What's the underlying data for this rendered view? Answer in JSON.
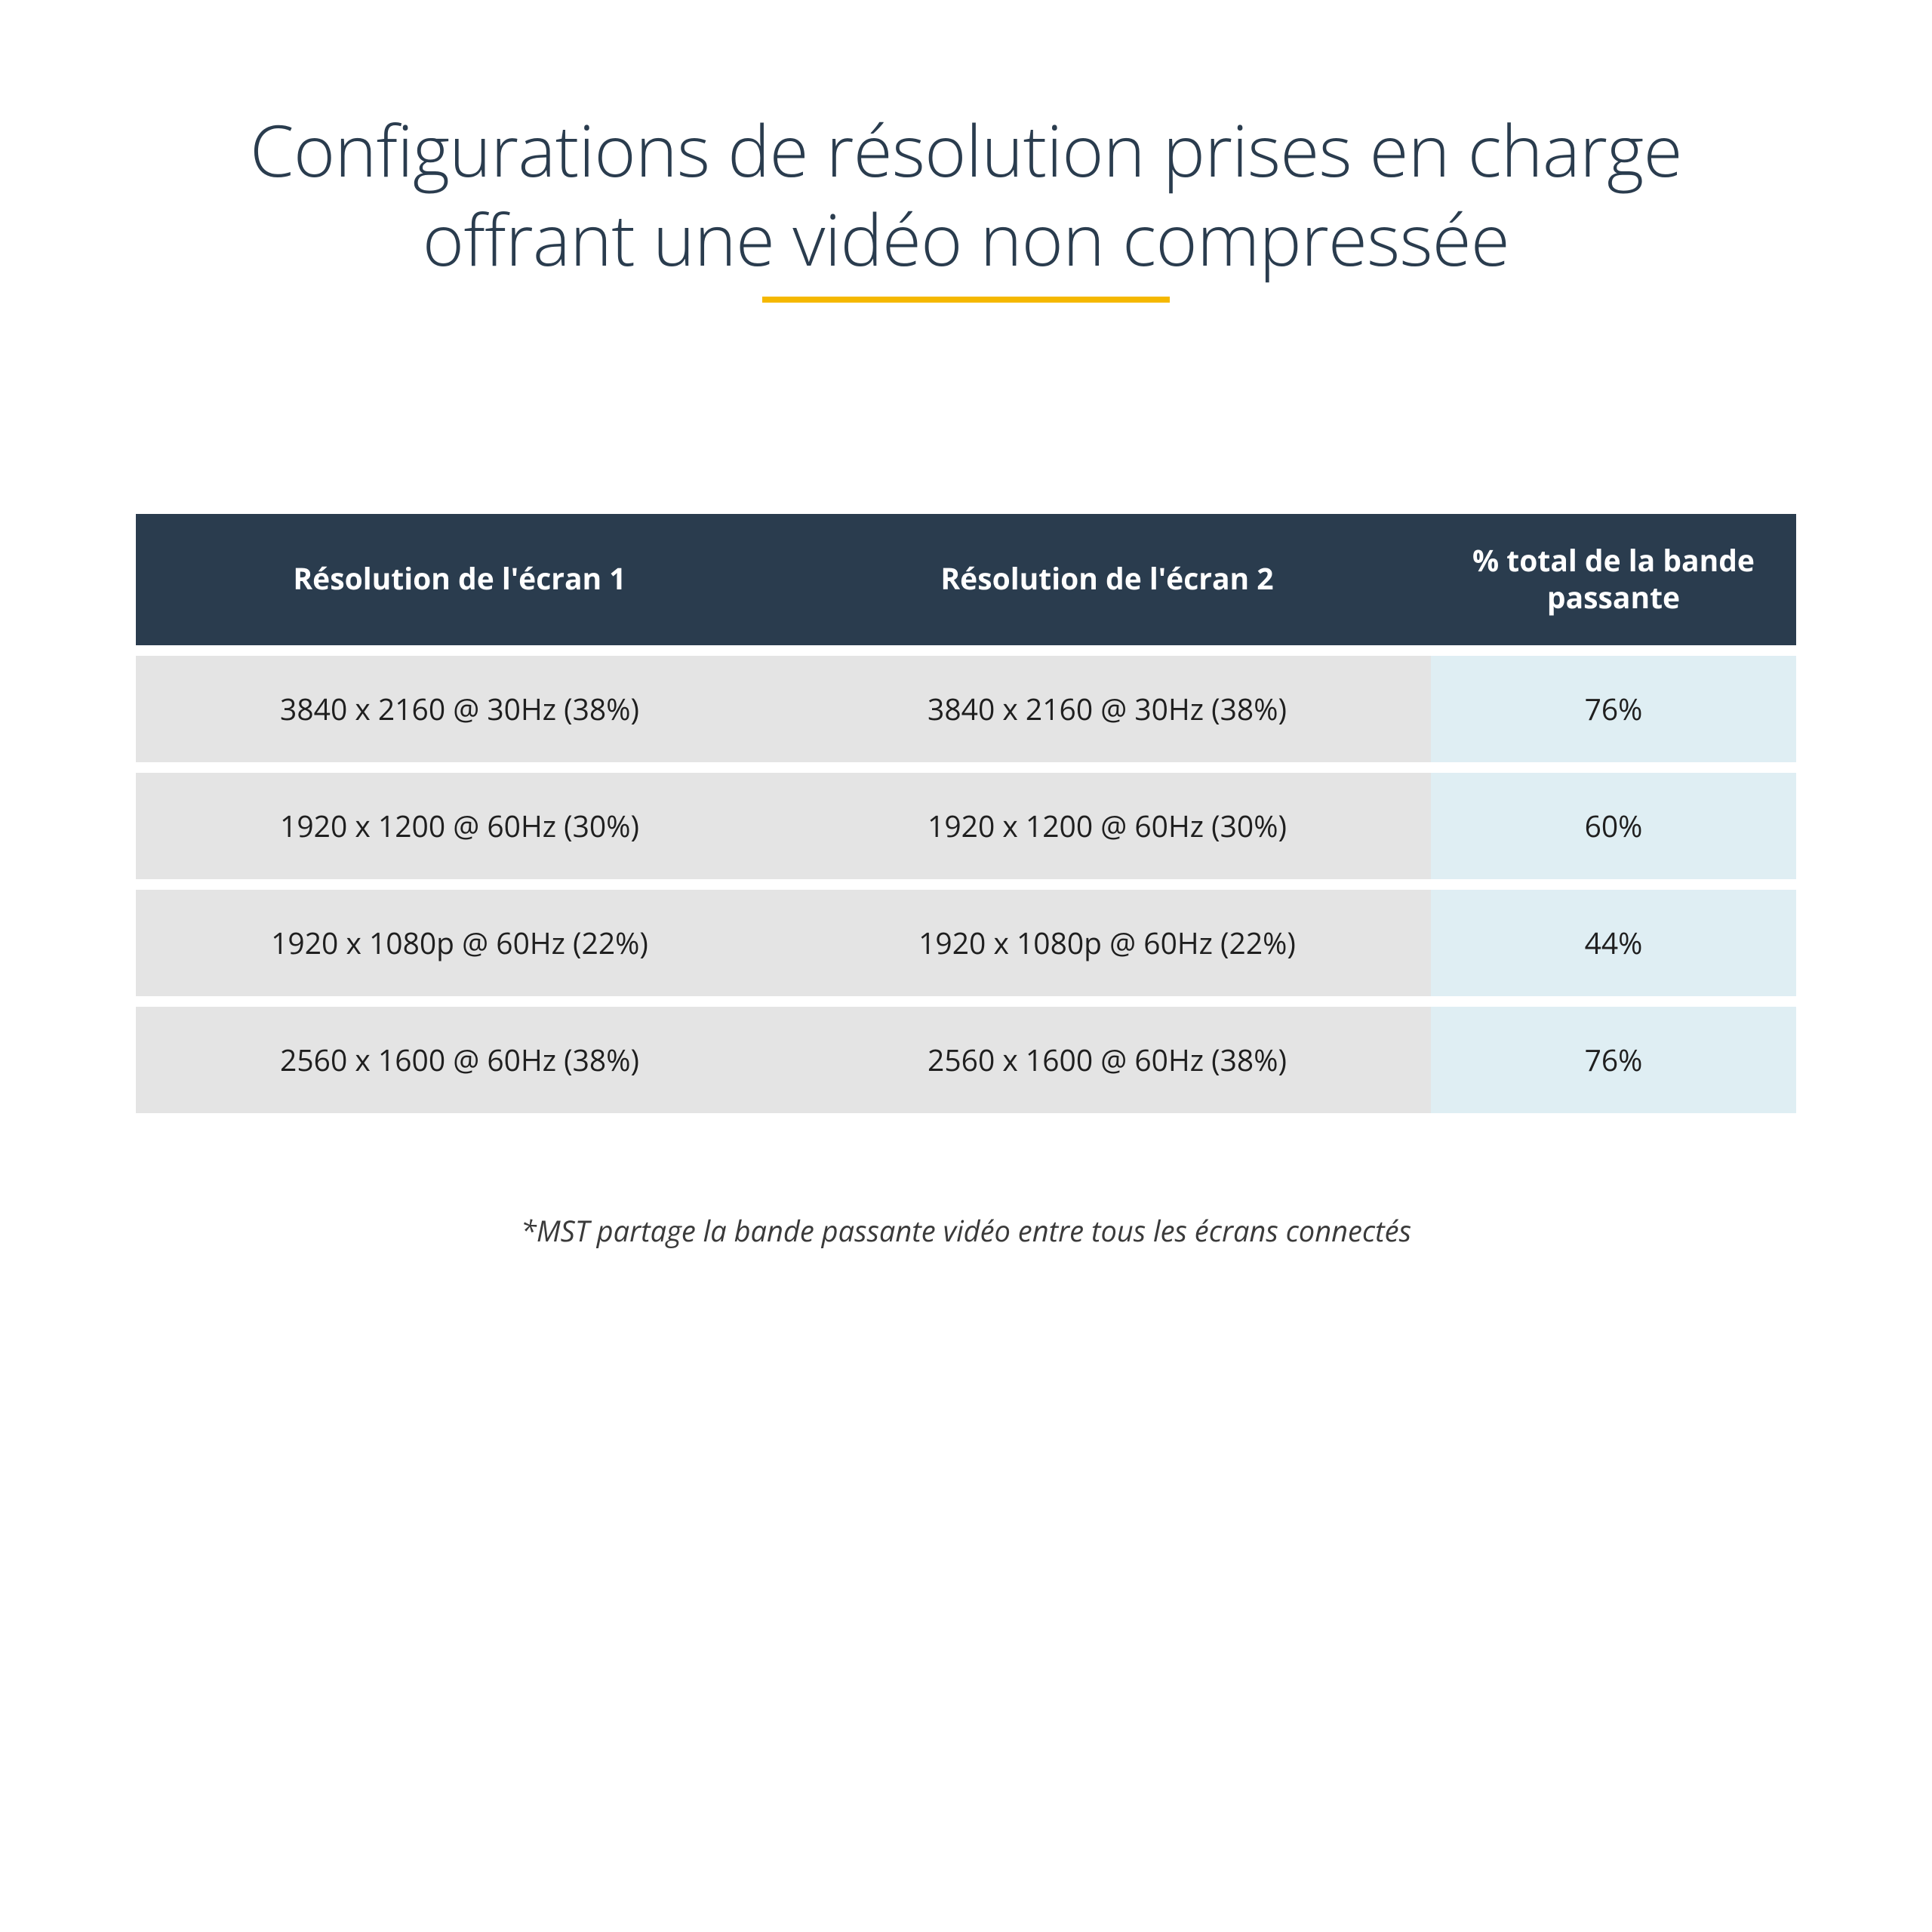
{
  "title": {
    "line1": "Configurations de résolution prises en charge",
    "line2": "offrant une vidéo non compressée",
    "color": "#2a3c4e",
    "fontsize": 94,
    "underline_color": "#f5b800",
    "underline_width": 540
  },
  "table": {
    "type": "table",
    "header_bg": "#2a3c4e",
    "header_fg": "#ffffff",
    "row_bg_cols12": "#e4e4e4",
    "row_bg_col3": "#dfeef3",
    "row_gap": 14,
    "columns": [
      {
        "label": "Résolution de l'écran 1",
        "width_pct": 39
      },
      {
        "label": "Résolution de l'écran 2",
        "width_pct": 39
      },
      {
        "label": "% total de la bande passante",
        "width_pct": 22
      }
    ],
    "rows": [
      {
        "c1": "3840 x 2160 @ 30Hz (38%)",
        "c2": "3840 x 2160 @ 30Hz (38%)",
        "c3": "76%"
      },
      {
        "c1": "1920 x 1200 @ 60Hz (30%)",
        "c2": "1920 x 1200 @ 60Hz (30%)",
        "c3": "60%"
      },
      {
        "c1": "1920 x 1080p @ 60Hz (22%)",
        "c2": "1920 x 1080p @ 60Hz (22%)",
        "c3": "44%"
      },
      {
        "c1": "2560 x 1600 @ 60Hz (38%)",
        "c2": "2560 x 1600 @ 60Hz (38%)",
        "c3": "76%"
      }
    ]
  },
  "footnote": "*MST partage la bande passante vidéo entre tous les écrans connectés"
}
